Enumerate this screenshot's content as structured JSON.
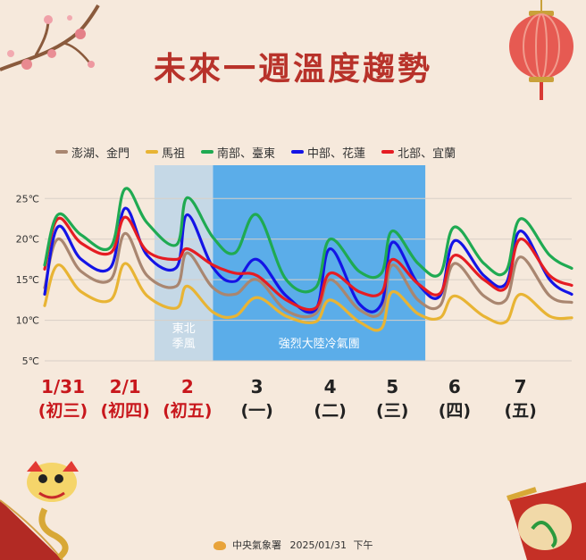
{
  "title": "未來一週溫度趨勢",
  "footer": {
    "org": "中央氣象署",
    "date": "2025/01/31",
    "time": "下午"
  },
  "chart_data": {
    "type": "line",
    "y_ticks": [
      "25℃",
      "20℃",
      "15℃",
      "10℃",
      "5℃"
    ],
    "y_tick_values": [
      25,
      20,
      15,
      10,
      5
    ],
    "ylim": [
      5,
      28
    ],
    "xlim": [
      0,
      7.2
    ],
    "x_labels": [
      {
        "date": "1/31",
        "weekday": "(初三)",
        "holiday": true,
        "pos": 0.25
      },
      {
        "date": "2/1",
        "weekday": "(初四)",
        "holiday": true,
        "pos": 1.1
      },
      {
        "date": "2",
        "weekday": "(初五)",
        "holiday": true,
        "pos": 1.95
      },
      {
        "date": "3",
        "weekday": "(一)",
        "holiday": false,
        "pos": 2.9
      },
      {
        "date": "4",
        "weekday": "(二)",
        "holiday": false,
        "pos": 3.9
      },
      {
        "date": "5",
        "weekday": "(三)",
        "holiday": false,
        "pos": 4.75
      },
      {
        "date": "6",
        "weekday": "(四)",
        "holiday": false,
        "pos": 5.6
      },
      {
        "date": "7",
        "weekday": "(五)",
        "holiday": false,
        "pos": 6.5
      }
    ],
    "bands": [
      {
        "label": [
          "東北",
          "季風"
        ],
        "from": 1.5,
        "to": 2.3,
        "color": "#9ccbef"
      },
      {
        "label": [
          "強烈大陸冷氣團"
        ],
        "from": 2.3,
        "to": 5.2,
        "color": "#4aa6ea"
      }
    ],
    "series": [
      {
        "name": "南部、臺東",
        "color": "#1faa52",
        "points": [
          [
            0.0,
            16.8
          ],
          [
            0.18,
            23.0
          ],
          [
            0.5,
            20.5
          ],
          [
            0.9,
            19.0
          ],
          [
            1.1,
            26.2
          ],
          [
            1.4,
            22.0
          ],
          [
            1.8,
            19.3
          ],
          [
            1.95,
            25.1
          ],
          [
            2.3,
            20.2
          ],
          [
            2.6,
            18.3
          ],
          [
            2.9,
            23.0
          ],
          [
            3.3,
            15.0
          ],
          [
            3.7,
            14.0
          ],
          [
            3.9,
            20.0
          ],
          [
            4.3,
            16.0
          ],
          [
            4.6,
            15.8
          ],
          [
            4.75,
            21.0
          ],
          [
            5.1,
            17.0
          ],
          [
            5.4,
            15.7
          ],
          [
            5.6,
            21.5
          ],
          [
            6.0,
            17.0
          ],
          [
            6.3,
            16.0
          ],
          [
            6.5,
            22.5
          ],
          [
            6.9,
            18.0
          ],
          [
            7.2,
            16.4
          ]
        ]
      },
      {
        "name": "北部、宜蘭",
        "color": "#e51c23",
        "points": [
          [
            0.0,
            16.3
          ],
          [
            0.18,
            22.5
          ],
          [
            0.5,
            19.5
          ],
          [
            0.9,
            18.3
          ],
          [
            1.1,
            22.7
          ],
          [
            1.4,
            18.5
          ],
          [
            1.8,
            17.5
          ],
          [
            1.95,
            18.8
          ],
          [
            2.3,
            16.8
          ],
          [
            2.6,
            15.8
          ],
          [
            2.9,
            15.5
          ],
          [
            3.3,
            12.5
          ],
          [
            3.7,
            11.5
          ],
          [
            3.9,
            15.8
          ],
          [
            4.3,
            13.5
          ],
          [
            4.6,
            13.4
          ],
          [
            4.75,
            17.5
          ],
          [
            5.1,
            14.5
          ],
          [
            5.4,
            13.3
          ],
          [
            5.6,
            18.0
          ],
          [
            6.0,
            15.0
          ],
          [
            6.3,
            14.0
          ],
          [
            6.5,
            20.0
          ],
          [
            6.9,
            15.5
          ],
          [
            7.2,
            14.3
          ]
        ]
      },
      {
        "name": "中部、花蓮",
        "color": "#1414e6",
        "points": [
          [
            0.0,
            13.2
          ],
          [
            0.18,
            21.5
          ],
          [
            0.5,
            17.5
          ],
          [
            0.9,
            16.5
          ],
          [
            1.1,
            23.8
          ],
          [
            1.4,
            18.0
          ],
          [
            1.8,
            16.5
          ],
          [
            1.95,
            23.0
          ],
          [
            2.3,
            16.5
          ],
          [
            2.6,
            14.8
          ],
          [
            2.9,
            17.5
          ],
          [
            3.3,
            13.0
          ],
          [
            3.7,
            11.3
          ],
          [
            3.9,
            18.8
          ],
          [
            4.3,
            12.0
          ],
          [
            4.6,
            12.0
          ],
          [
            4.75,
            19.6
          ],
          [
            5.1,
            14.5
          ],
          [
            5.4,
            13.0
          ],
          [
            5.6,
            19.8
          ],
          [
            6.0,
            15.5
          ],
          [
            6.3,
            14.5
          ],
          [
            6.5,
            21.0
          ],
          [
            6.9,
            15.0
          ],
          [
            7.2,
            13.2
          ]
        ]
      },
      {
        "name": "澎湖、金門",
        "color": "#a98670",
        "points": [
          [
            0.0,
            14.0
          ],
          [
            0.18,
            20.0
          ],
          [
            0.5,
            16.0
          ],
          [
            0.9,
            15.0
          ],
          [
            1.1,
            20.7
          ],
          [
            1.4,
            15.5
          ],
          [
            1.8,
            14.2
          ],
          [
            1.95,
            18.3
          ],
          [
            2.3,
            14.0
          ],
          [
            2.6,
            13.2
          ],
          [
            2.9,
            15.0
          ],
          [
            3.3,
            11.2
          ],
          [
            3.7,
            10.8
          ],
          [
            3.9,
            15.0
          ],
          [
            4.3,
            11.3
          ],
          [
            4.6,
            11.0
          ],
          [
            4.75,
            16.8
          ],
          [
            5.1,
            12.5
          ],
          [
            5.4,
            11.8
          ],
          [
            5.6,
            17.0
          ],
          [
            6.0,
            13.0
          ],
          [
            6.3,
            12.5
          ],
          [
            6.5,
            17.8
          ],
          [
            6.9,
            13.0
          ],
          [
            7.2,
            12.2
          ]
        ]
      },
      {
        "name": "馬祖",
        "color": "#e8b434",
        "points": [
          [
            0.0,
            11.8
          ],
          [
            0.18,
            16.8
          ],
          [
            0.5,
            13.5
          ],
          [
            0.9,
            12.5
          ],
          [
            1.1,
            17.0
          ],
          [
            1.4,
            13.0
          ],
          [
            1.8,
            11.5
          ],
          [
            1.95,
            14.2
          ],
          [
            2.3,
            11.0
          ],
          [
            2.6,
            10.5
          ],
          [
            2.9,
            12.8
          ],
          [
            3.3,
            10.5
          ],
          [
            3.7,
            9.8
          ],
          [
            3.9,
            12.5
          ],
          [
            4.3,
            9.8
          ],
          [
            4.6,
            9.0
          ],
          [
            4.75,
            13.5
          ],
          [
            5.1,
            10.8
          ],
          [
            5.4,
            10.3
          ],
          [
            5.6,
            13.0
          ],
          [
            6.0,
            10.5
          ],
          [
            6.3,
            9.8
          ],
          [
            6.5,
            13.2
          ],
          [
            6.9,
            10.5
          ],
          [
            7.2,
            10.3
          ]
        ]
      }
    ],
    "legend_order": [
      "澎湖、金門",
      "馬祖",
      "南部、臺東",
      "中部、花蓮",
      "北部、宜蘭"
    ]
  }
}
